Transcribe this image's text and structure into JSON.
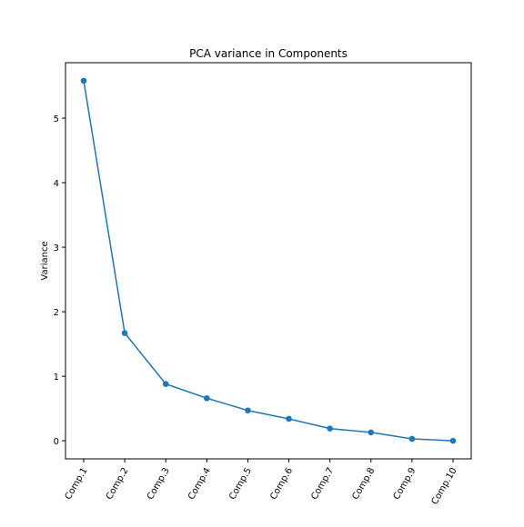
{
  "chart_data": {
    "type": "line",
    "title": "PCA variance in Components",
    "xlabel": "",
    "ylabel": "Variance",
    "categories": [
      "Comp.1",
      "Comp.2",
      "Comp.3",
      "Comp.4",
      "Comp.5",
      "Comp.6",
      "Comp.7",
      "Comp.8",
      "Comp.9",
      "Comp.10"
    ],
    "series": [
      {
        "values": [
          5.58,
          1.67,
          0.88,
          0.66,
          0.47,
          0.34,
          0.19,
          0.13,
          0.03,
          0.0
        ],
        "color": "#1f77b4",
        "marker": "circle"
      }
    ],
    "yticks": [
      "0",
      "1",
      "2",
      "3",
      "4",
      "5"
    ],
    "ylim": [
      -0.28,
      5.86
    ],
    "grid": false,
    "legend": "none"
  }
}
